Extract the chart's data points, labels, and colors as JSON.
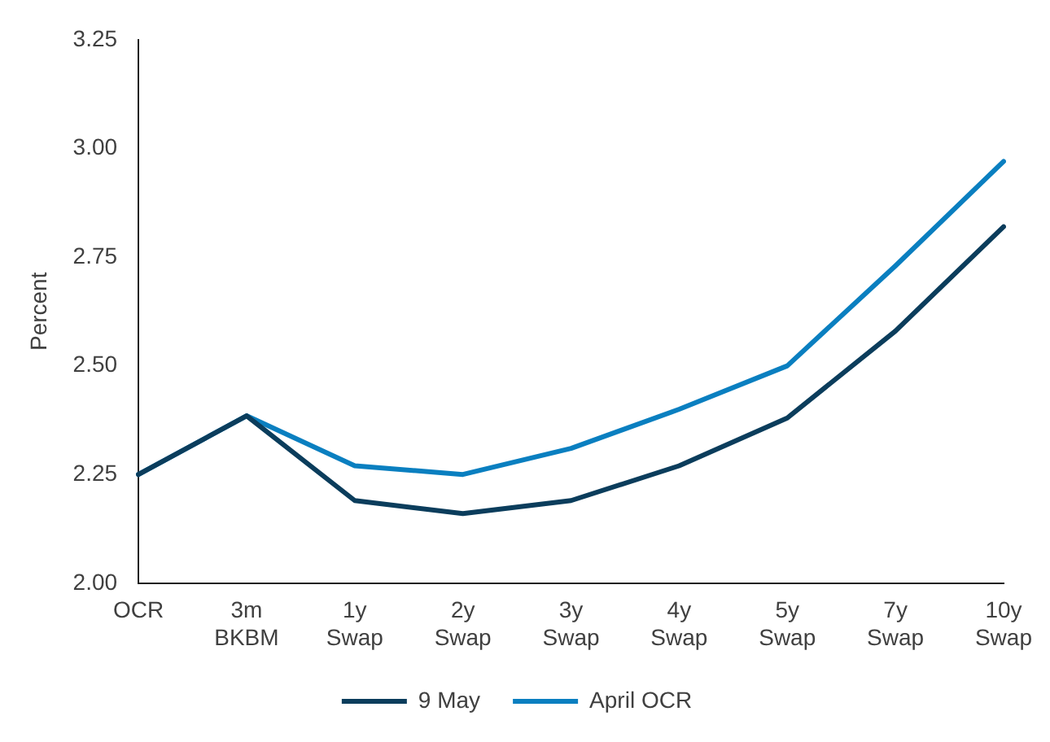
{
  "chart_data": {
    "type": "line",
    "ylabel": "Percent",
    "categories": [
      "OCR",
      "3m BKBM",
      "1y Swap",
      "2y Swap",
      "3y Swap",
      "4y Swap",
      "5y Swap",
      "7y Swap",
      "10y Swap"
    ],
    "series": [
      {
        "name": "9 May",
        "color": "#0b3d5c",
        "values": [
          2.25,
          2.385,
          2.19,
          2.16,
          2.19,
          2.27,
          2.38,
          2.58,
          2.82
        ]
      },
      {
        "name": "April OCR",
        "color": "#0a7fc0",
        "values": [
          2.25,
          2.385,
          2.27,
          2.25,
          2.31,
          2.4,
          2.5,
          2.73,
          2.97
        ]
      }
    ],
    "ylim": [
      2.0,
      3.25
    ],
    "yticks": [
      {
        "value": 2.0,
        "label": "2.00"
      },
      {
        "value": 2.25,
        "label": "2.25"
      },
      {
        "value": 2.5,
        "label": "2.50"
      },
      {
        "value": 2.75,
        "label": "2.75"
      },
      {
        "value": 3.0,
        "label": "3.00"
      },
      {
        "value": 3.25,
        "label": "3.25"
      }
    ],
    "grid": false,
    "legend": "bottom",
    "marker": "none",
    "line_style": "solid"
  }
}
